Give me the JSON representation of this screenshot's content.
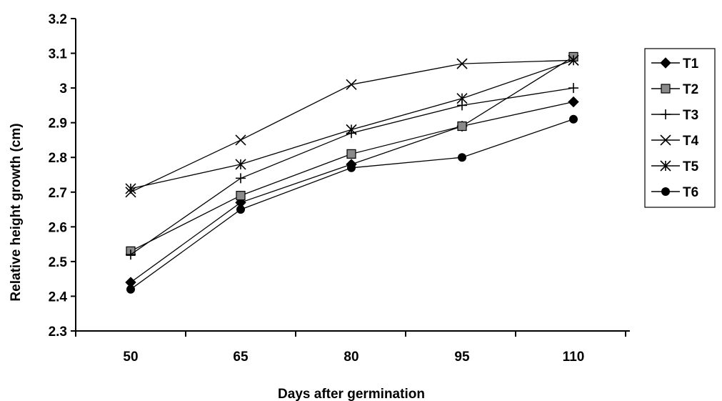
{
  "chart_data": {
    "type": "line",
    "xlabel": "Days  after germination",
    "ylabel": "Relative  height growth (cm)",
    "categories": [
      "50",
      "65",
      "80",
      "95",
      "110"
    ],
    "ylim": [
      2.3,
      3.2
    ],
    "yticks": [
      "2.3",
      "2.4",
      "2.5",
      "2.6",
      "2.7",
      "2.8",
      "2.9",
      "3",
      "3.1",
      "3.2"
    ],
    "grid": false,
    "legend_position": "right",
    "series": [
      {
        "name": "T1",
        "marker": "diamond",
        "values": [
          2.44,
          2.67,
          2.78,
          2.89,
          2.96
        ]
      },
      {
        "name": "T2",
        "marker": "square",
        "values": [
          2.53,
          2.69,
          2.81,
          2.89,
          3.09
        ]
      },
      {
        "name": "T3",
        "marker": "plus",
        "values": [
          2.52,
          2.74,
          2.87,
          2.95,
          3.0
        ]
      },
      {
        "name": "T4",
        "marker": "x",
        "values": [
          2.7,
          2.85,
          3.01,
          3.07,
          3.08
        ]
      },
      {
        "name": "T5",
        "marker": "star",
        "values": [
          2.71,
          2.78,
          2.88,
          2.97,
          3.08
        ]
      },
      {
        "name": "T6",
        "marker": "circle",
        "values": [
          2.42,
          2.65,
          2.77,
          2.8,
          2.91
        ]
      }
    ]
  }
}
